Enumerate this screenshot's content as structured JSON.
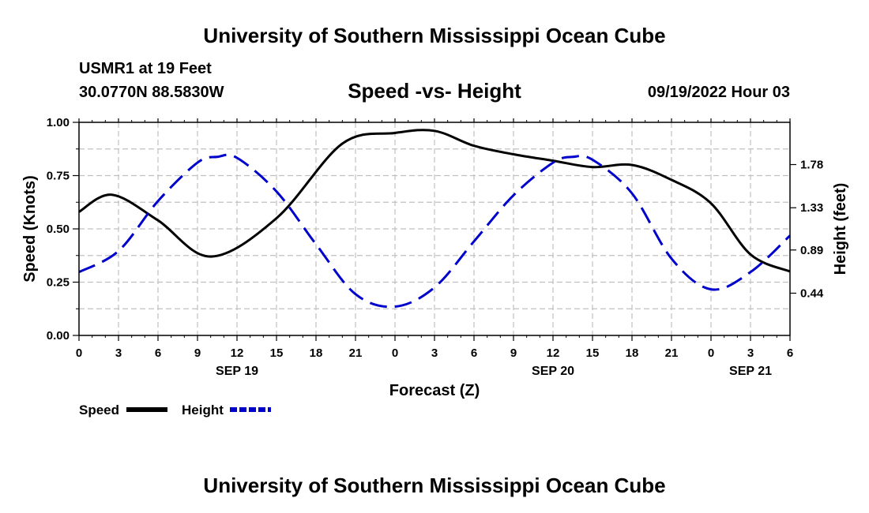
{
  "header": {
    "title": "University of Southern Mississippi Ocean Cube",
    "station": "USMR1 at 19 Feet",
    "coords": "30.0770N  88.5830W",
    "subtitle": "Speed -vs- Height",
    "datetime": "09/19/2022 Hour 03",
    "footer_title": "University of Southern Mississippi Ocean Cube"
  },
  "colors": {
    "speed": "#000000",
    "height": "#0000cc",
    "grid": "#c0c0c0"
  },
  "chart_data": {
    "type": "line",
    "title": "Speed -vs- Height",
    "xlabel": "Forecast (Z)",
    "ylabel": "Speed (Knots)",
    "y2label": "Height (feet)",
    "xlim": [
      0,
      54
    ],
    "ylim": [
      0,
      1.0
    ],
    "y2lim": [
      0.0,
      2.22
    ],
    "xticks": [
      0,
      3,
      6,
      9,
      12,
      15,
      18,
      21,
      24,
      27,
      30,
      33,
      36,
      39,
      42,
      45,
      48,
      51,
      54
    ],
    "xtick_labels": [
      "0",
      "3",
      "6",
      "9",
      "12",
      "15",
      "18",
      "21",
      "0",
      "3",
      "6",
      "9",
      "12",
      "15",
      "18",
      "21",
      "0",
      "3",
      "6"
    ],
    "date_labels": [
      {
        "x": 12,
        "label": "SEP 19"
      },
      {
        "x": 36,
        "label": "SEP 20"
      },
      {
        "x": 51,
        "label": "SEP 21"
      }
    ],
    "yticks": [
      0.0,
      0.25,
      0.5,
      0.75,
      1.0
    ],
    "ytick_labels": [
      "0.00",
      "0.25",
      "0.50",
      "0.75",
      "1.00"
    ],
    "y2ticks": [
      0.44,
      0.89,
      1.33,
      1.78
    ],
    "y2tick_labels": [
      "0.44",
      "0.89",
      "1.33",
      "1.78"
    ],
    "series": [
      {
        "name": "Speed",
        "axis": "left",
        "style": "solid",
        "x": [
          0,
          2.5,
          6,
          10,
          15,
          20,
          24,
          27,
          30,
          33,
          36,
          39,
          42,
          45,
          48,
          51,
          54
        ],
        "values": [
          0.58,
          0.66,
          0.54,
          0.37,
          0.55,
          0.9,
          0.95,
          0.96,
          0.89,
          0.85,
          0.82,
          0.79,
          0.8,
          0.73,
          0.62,
          0.38,
          0.3
        ]
      },
      {
        "name": "Height",
        "axis": "right",
        "style": "dashed",
        "x": [
          0,
          3,
          6,
          9,
          10.5,
          12,
          15,
          18,
          21,
          24,
          27,
          30,
          33,
          36,
          37.5,
          39,
          42,
          45,
          48,
          51,
          54
        ],
        "values": [
          0.66,
          0.88,
          1.4,
          1.8,
          1.86,
          1.85,
          1.5,
          0.95,
          0.43,
          0.3,
          0.5,
          0.98,
          1.46,
          1.8,
          1.86,
          1.83,
          1.48,
          0.8,
          0.48,
          0.66,
          1.04
        ]
      }
    ],
    "legend": [
      {
        "label": "Speed",
        "style": "solid"
      },
      {
        "label": "Height",
        "style": "dashed"
      }
    ],
    "legend_position": "bottom-left"
  }
}
